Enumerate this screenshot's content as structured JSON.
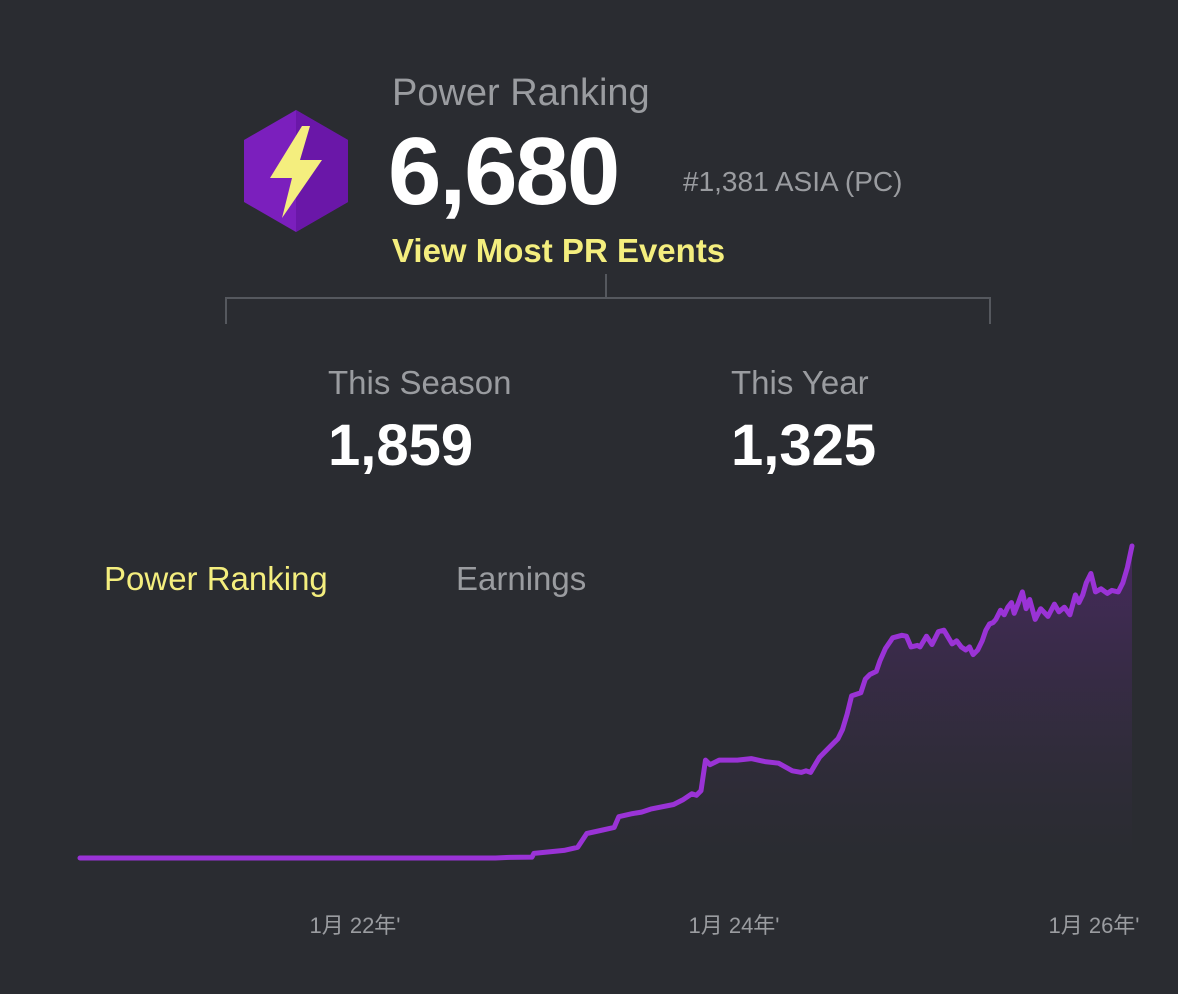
{
  "power_ranking": {
    "label": "Power Ranking",
    "value": "6,680",
    "region_rank": "#1,381 ASIA (PC)",
    "view_events_link": "View Most PR Events",
    "icon": "lightning-bolt-hexagon-icon",
    "icon_color": "#7b1fbd",
    "bolt_color": "#f4ee7e"
  },
  "stats": {
    "season_label": "This Season",
    "season_value": "1,859",
    "year_label": "This Year",
    "year_value": "1,325"
  },
  "tabs": [
    {
      "label": "Power Ranking",
      "active": true
    },
    {
      "label": "Earnings",
      "active": false
    }
  ],
  "colors": {
    "background": "#2a2c31",
    "accent": "#f4ee7e",
    "line": "#9a33d6",
    "muted": "#9a9ca0"
  },
  "chart_data": {
    "type": "area",
    "x_ticks": [
      "1月 22年'",
      "1月 24年'",
      "1月 26年'"
    ],
    "series": [
      {
        "points": [
          [
            0.0,
            0
          ],
          [
            0.1,
            0
          ],
          [
            0.2,
            0
          ],
          [
            0.3,
            0
          ],
          [
            0.4,
            0
          ],
          [
            0.455,
            0
          ],
          [
            0.47,
            2
          ],
          [
            0.495,
            3
          ],
          [
            0.497,
            15
          ],
          [
            0.53,
            25
          ],
          [
            0.545,
            35
          ],
          [
            0.555,
            80
          ],
          [
            0.57,
            90
          ],
          [
            0.585,
            100
          ],
          [
            0.59,
            135
          ],
          [
            0.605,
            145
          ],
          [
            0.615,
            150
          ],
          [
            0.625,
            160
          ],
          [
            0.65,
            175
          ],
          [
            0.66,
            190
          ],
          [
            0.67,
            210
          ],
          [
            0.675,
            205
          ],
          [
            0.68,
            220
          ],
          [
            0.685,
            320
          ],
          [
            0.69,
            305
          ],
          [
            0.7,
            320
          ],
          [
            0.72,
            320
          ],
          [
            0.735,
            325
          ],
          [
            0.75,
            315
          ],
          [
            0.765,
            310
          ],
          [
            0.78,
            285
          ],
          [
            0.79,
            280
          ],
          [
            0.795,
            285
          ],
          [
            0.8,
            280
          ],
          [
            0.805,
            305
          ],
          [
            0.81,
            330
          ],
          [
            0.82,
            360
          ],
          [
            0.83,
            390
          ],
          [
            0.835,
            420
          ],
          [
            0.84,
            470
          ],
          [
            0.845,
            530
          ],
          [
            0.855,
            540
          ],
          [
            0.86,
            585
          ],
          [
            0.865,
            600
          ],
          [
            0.872,
            610
          ],
          [
            0.876,
            645
          ],
          [
            0.882,
            685
          ],
          [
            0.89,
            720
          ],
          [
            0.9,
            728
          ],
          [
            0.905,
            725
          ],
          [
            0.91,
            690
          ],
          [
            0.917,
            695
          ],
          [
            0.92,
            690
          ],
          [
            0.927,
            725
          ],
          [
            0.933,
            698
          ],
          [
            0.94,
            740
          ],
          [
            0.946,
            745
          ],
          [
            0.95,
            725
          ],
          [
            0.955,
            700
          ],
          [
            0.96,
            710
          ],
          [
            0.965,
            690
          ],
          [
            0.97,
            680
          ],
          [
            0.974,
            690
          ],
          [
            0.978,
            665
          ],
          [
            0.983,
            680
          ],
          [
            0.988,
            710
          ],
          [
            0.992,
            745
          ],
          [
            0.996,
            765
          ],
          [
            1.0,
            770
          ],
          [
            1.003,
            780
          ],
          [
            1.008,
            810
          ],
          [
            1.012,
            795
          ],
          [
            1.016,
            820
          ],
          [
            1.02,
            835
          ],
          [
            1.023,
            800
          ],
          [
            1.027,
            830
          ],
          [
            1.032,
            870
          ],
          [
            1.036,
            815
          ],
          [
            1.04,
            845
          ],
          [
            1.046,
            780
          ],
          [
            1.052,
            815
          ],
          [
            1.06,
            790
          ],
          [
            1.067,
            830
          ],
          [
            1.072,
            805
          ],
          [
            1.078,
            820
          ],
          [
            1.084,
            795
          ],
          [
            1.09,
            860
          ],
          [
            1.094,
            835
          ],
          [
            1.098,
            860
          ],
          [
            1.102,
            900
          ],
          [
            1.107,
            930
          ],
          [
            1.112,
            870
          ],
          [
            1.118,
            880
          ],
          [
            1.125,
            865
          ],
          [
            1.13,
            875
          ],
          [
            1.137,
            870
          ],
          [
            1.142,
            900
          ],
          [
            1.147,
            950
          ],
          [
            1.152,
            1020
          ]
        ]
      }
    ],
    "ylim": [
      0,
      1020
    ],
    "grid": false
  }
}
